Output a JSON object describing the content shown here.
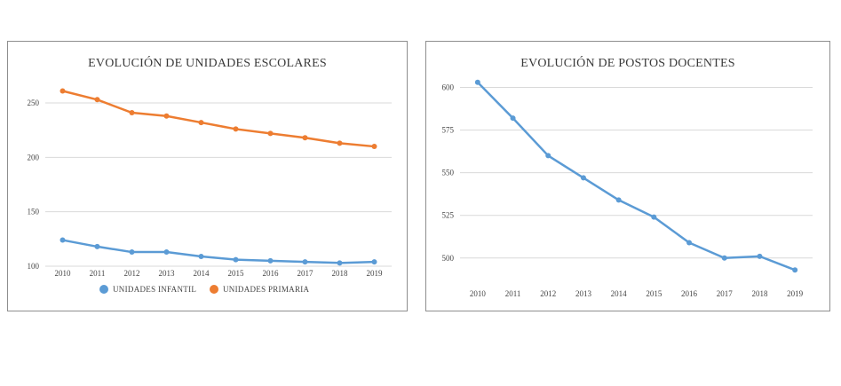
{
  "chart_data": [
    {
      "type": "line",
      "title": "EVOLUCIÓN DE UNIDADES ESCOLARES",
      "categories": [
        "2010",
        "2011",
        "2012",
        "2013",
        "2014",
        "2015",
        "2016",
        "2017",
        "2018",
        "2019"
      ],
      "series": [
        {
          "name": "UNIDADES INFANTIL",
          "color": "#5b9bd5",
          "values": [
            124,
            118,
            113,
            113,
            109,
            106,
            105,
            104,
            103,
            104
          ]
        },
        {
          "name": "UNIDADES PRIMARIA",
          "color": "#ed7d31",
          "values": [
            261,
            253,
            241,
            238,
            232,
            226,
            222,
            218,
            213,
            210
          ]
        }
      ],
      "yticks": [
        100,
        150,
        200,
        250
      ],
      "ylim": [
        100,
        272
      ],
      "grid": true,
      "legend": "bottom"
    },
    {
      "type": "line",
      "title": "EVOLUCIÓN DE POSTOS DOCENTES",
      "categories": [
        "2010",
        "2011",
        "2012",
        "2013",
        "2014",
        "2015",
        "2016",
        "2017",
        "2018",
        "2019"
      ],
      "series": [
        {
          "color": "#5b9bd5",
          "values": [
            603,
            582,
            560,
            547,
            534,
            524,
            509,
            500,
            501,
            493
          ]
        }
      ],
      "yticks": [
        500,
        525,
        550,
        575,
        600
      ],
      "ylim": [
        490,
        606
      ],
      "grid": true,
      "legend": "none"
    }
  ]
}
